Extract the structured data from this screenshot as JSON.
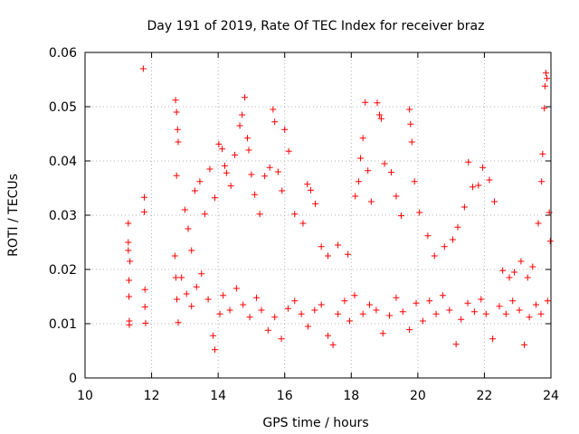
{
  "chart_data": {
    "type": "scatter",
    "title": "Day 191 of 2019, Rate Of TEC Index for receiver braz",
    "xlabel": "GPS time / hours",
    "ylabel": "ROTI / TECUs",
    "xlim": [
      10,
      24
    ],
    "ylim": [
      0,
      0.06
    ],
    "xticks": [
      10,
      12,
      14,
      16,
      18,
      20,
      22,
      24
    ],
    "xtick_labels": [
      "10",
      "12",
      "14",
      "16",
      "18",
      "20",
      "22",
      "24"
    ],
    "yticks": [
      0,
      0.01,
      0.02,
      0.03,
      0.04,
      0.05,
      0.06
    ],
    "ytick_labels": [
      "0",
      "0.01",
      "0.02",
      "0.03",
      "0.04",
      "0.05",
      "0.06"
    ],
    "grid": true,
    "marker": "+",
    "color": "#ff0000",
    "series": [
      {
        "name": "ROTI",
        "points": [
          [
            11.3,
            0.0285
          ],
          [
            11.3,
            0.025
          ],
          [
            11.3,
            0.0235
          ],
          [
            11.32,
            0.018
          ],
          [
            11.32,
            0.015
          ],
          [
            11.33,
            0.0105
          ],
          [
            11.33,
            0.0098
          ],
          [
            11.35,
            0.0215
          ],
          [
            11.75,
            0.057
          ],
          [
            11.78,
            0.0333
          ],
          [
            11.78,
            0.0306
          ],
          [
            11.8,
            0.0163
          ],
          [
            11.8,
            0.0131
          ],
          [
            11.82,
            0.0101
          ],
          [
            12.72,
            0.0512
          ],
          [
            12.75,
            0.049
          ],
          [
            12.78,
            0.0458
          ],
          [
            12.8,
            0.0435
          ],
          [
            12.75,
            0.0373
          ],
          [
            12.7,
            0.0225
          ],
          [
            12.73,
            0.0185
          ],
          [
            12.76,
            0.0145
          ],
          [
            12.8,
            0.0102
          ],
          [
            13.0,
            0.031
          ],
          [
            13.1,
            0.0275
          ],
          [
            13.2,
            0.0235
          ],
          [
            13.3,
            0.0345
          ],
          [
            13.45,
            0.0362
          ],
          [
            13.6,
            0.0302
          ],
          [
            13.75,
            0.0385
          ],
          [
            13.9,
            0.0332
          ],
          [
            14.02,
            0.0431
          ],
          [
            14.12,
            0.0422
          ],
          [
            14.2,
            0.0391
          ],
          [
            14.25,
            0.0378
          ],
          [
            14.38,
            0.0354
          ],
          [
            14.5,
            0.0411
          ],
          [
            14.65,
            0.0465
          ],
          [
            14.72,
            0.0485
          ],
          [
            14.8,
            0.0517
          ],
          [
            14.88,
            0.0442
          ],
          [
            14.92,
            0.042
          ],
          [
            15.0,
            0.0375
          ],
          [
            15.1,
            0.0338
          ],
          [
            15.25,
            0.0302
          ],
          [
            15.4,
            0.0372
          ],
          [
            15.55,
            0.0388
          ],
          [
            15.65,
            0.0495
          ],
          [
            15.7,
            0.0472
          ],
          [
            15.8,
            0.038
          ],
          [
            15.92,
            0.0345
          ],
          [
            16.0,
            0.0458
          ],
          [
            16.12,
            0.0418
          ],
          [
            16.3,
            0.0302
          ],
          [
            16.55,
            0.0285
          ],
          [
            16.68,
            0.0357
          ],
          [
            16.78,
            0.0346
          ],
          [
            16.92,
            0.0321
          ],
          [
            17.1,
            0.0242
          ],
          [
            17.3,
            0.0225
          ],
          [
            17.6,
            0.0245
          ],
          [
            17.9,
            0.0228
          ],
          [
            18.12,
            0.0335
          ],
          [
            18.22,
            0.0362
          ],
          [
            18.28,
            0.0405
          ],
          [
            18.35,
            0.0442
          ],
          [
            18.42,
            0.0508
          ],
          [
            18.5,
            0.0382
          ],
          [
            18.6,
            0.0325
          ],
          [
            18.78,
            0.0507
          ],
          [
            18.85,
            0.0485
          ],
          [
            18.9,
            0.0478
          ],
          [
            19.0,
            0.0395
          ],
          [
            19.2,
            0.0379
          ],
          [
            19.35,
            0.0335
          ],
          [
            19.5,
            0.0299
          ],
          [
            19.75,
            0.0495
          ],
          [
            19.78,
            0.0468
          ],
          [
            19.82,
            0.0435
          ],
          [
            19.9,
            0.0362
          ],
          [
            20.05,
            0.0305
          ],
          [
            20.3,
            0.0262
          ],
          [
            20.5,
            0.0225
          ],
          [
            20.8,
            0.0242
          ],
          [
            21.05,
            0.0255
          ],
          [
            21.2,
            0.0278
          ],
          [
            21.4,
            0.0315
          ],
          [
            21.52,
            0.0398
          ],
          [
            21.65,
            0.0352
          ],
          [
            21.82,
            0.0355
          ],
          [
            21.95,
            0.0388
          ],
          [
            22.15,
            0.0365
          ],
          [
            22.3,
            0.0325
          ],
          [
            22.55,
            0.0198
          ],
          [
            22.75,
            0.0185
          ],
          [
            22.9,
            0.0195
          ],
          [
            23.1,
            0.0215
          ],
          [
            23.3,
            0.0185
          ],
          [
            23.45,
            0.0205
          ],
          [
            23.62,
            0.0285
          ],
          [
            23.72,
            0.0362
          ],
          [
            23.75,
            0.0413
          ],
          [
            23.8,
            0.0497
          ],
          [
            23.82,
            0.0538
          ],
          [
            23.85,
            0.0562
          ],
          [
            23.88,
            0.0552
          ],
          [
            23.95,
            0.0305
          ],
          [
            23.98,
            0.0252
          ],
          [
            12.9,
            0.0185
          ],
          [
            13.05,
            0.0155
          ],
          [
            13.2,
            0.0132
          ],
          [
            13.35,
            0.0168
          ],
          [
            13.5,
            0.0192
          ],
          [
            13.7,
            0.0145
          ],
          [
            13.85,
            0.0078
          ],
          [
            13.9,
            0.0052
          ],
          [
            14.05,
            0.0118
          ],
          [
            14.15,
            0.0152
          ],
          [
            14.35,
            0.0125
          ],
          [
            14.55,
            0.0165
          ],
          [
            14.75,
            0.0135
          ],
          [
            14.95,
            0.0112
          ],
          [
            15.15,
            0.0148
          ],
          [
            15.3,
            0.0125
          ],
          [
            15.5,
            0.0088
          ],
          [
            15.7,
            0.0112
          ],
          [
            15.9,
            0.0072
          ],
          [
            16.1,
            0.0128
          ],
          [
            16.3,
            0.0142
          ],
          [
            16.5,
            0.0118
          ],
          [
            16.7,
            0.0095
          ],
          [
            16.9,
            0.0125
          ],
          [
            17.1,
            0.0135
          ],
          [
            17.3,
            0.0078
          ],
          [
            17.45,
            0.0061
          ],
          [
            17.6,
            0.0118
          ],
          [
            17.8,
            0.0142
          ],
          [
            17.95,
            0.0105
          ],
          [
            18.1,
            0.0152
          ],
          [
            18.35,
            0.0118
          ],
          [
            18.55,
            0.0135
          ],
          [
            18.75,
            0.0125
          ],
          [
            18.95,
            0.0082
          ],
          [
            19.15,
            0.0115
          ],
          [
            19.35,
            0.0148
          ],
          [
            19.55,
            0.0122
          ],
          [
            19.75,
            0.0089
          ],
          [
            19.95,
            0.0138
          ],
          [
            20.15,
            0.0105
          ],
          [
            20.35,
            0.0142
          ],
          [
            20.55,
            0.0118
          ],
          [
            20.75,
            0.0152
          ],
          [
            20.95,
            0.0125
          ],
          [
            21.15,
            0.0062
          ],
          [
            21.3,
            0.0108
          ],
          [
            21.5,
            0.0138
          ],
          [
            21.7,
            0.0122
          ],
          [
            21.9,
            0.0145
          ],
          [
            22.05,
            0.0118
          ],
          [
            22.25,
            0.0072
          ],
          [
            22.45,
            0.0132
          ],
          [
            22.65,
            0.0118
          ],
          [
            22.85,
            0.0142
          ],
          [
            23.05,
            0.0125
          ],
          [
            23.2,
            0.0061
          ],
          [
            23.35,
            0.0112
          ],
          [
            23.55,
            0.0135
          ],
          [
            23.7,
            0.0118
          ],
          [
            23.9,
            0.0142
          ]
        ]
      }
    ]
  }
}
